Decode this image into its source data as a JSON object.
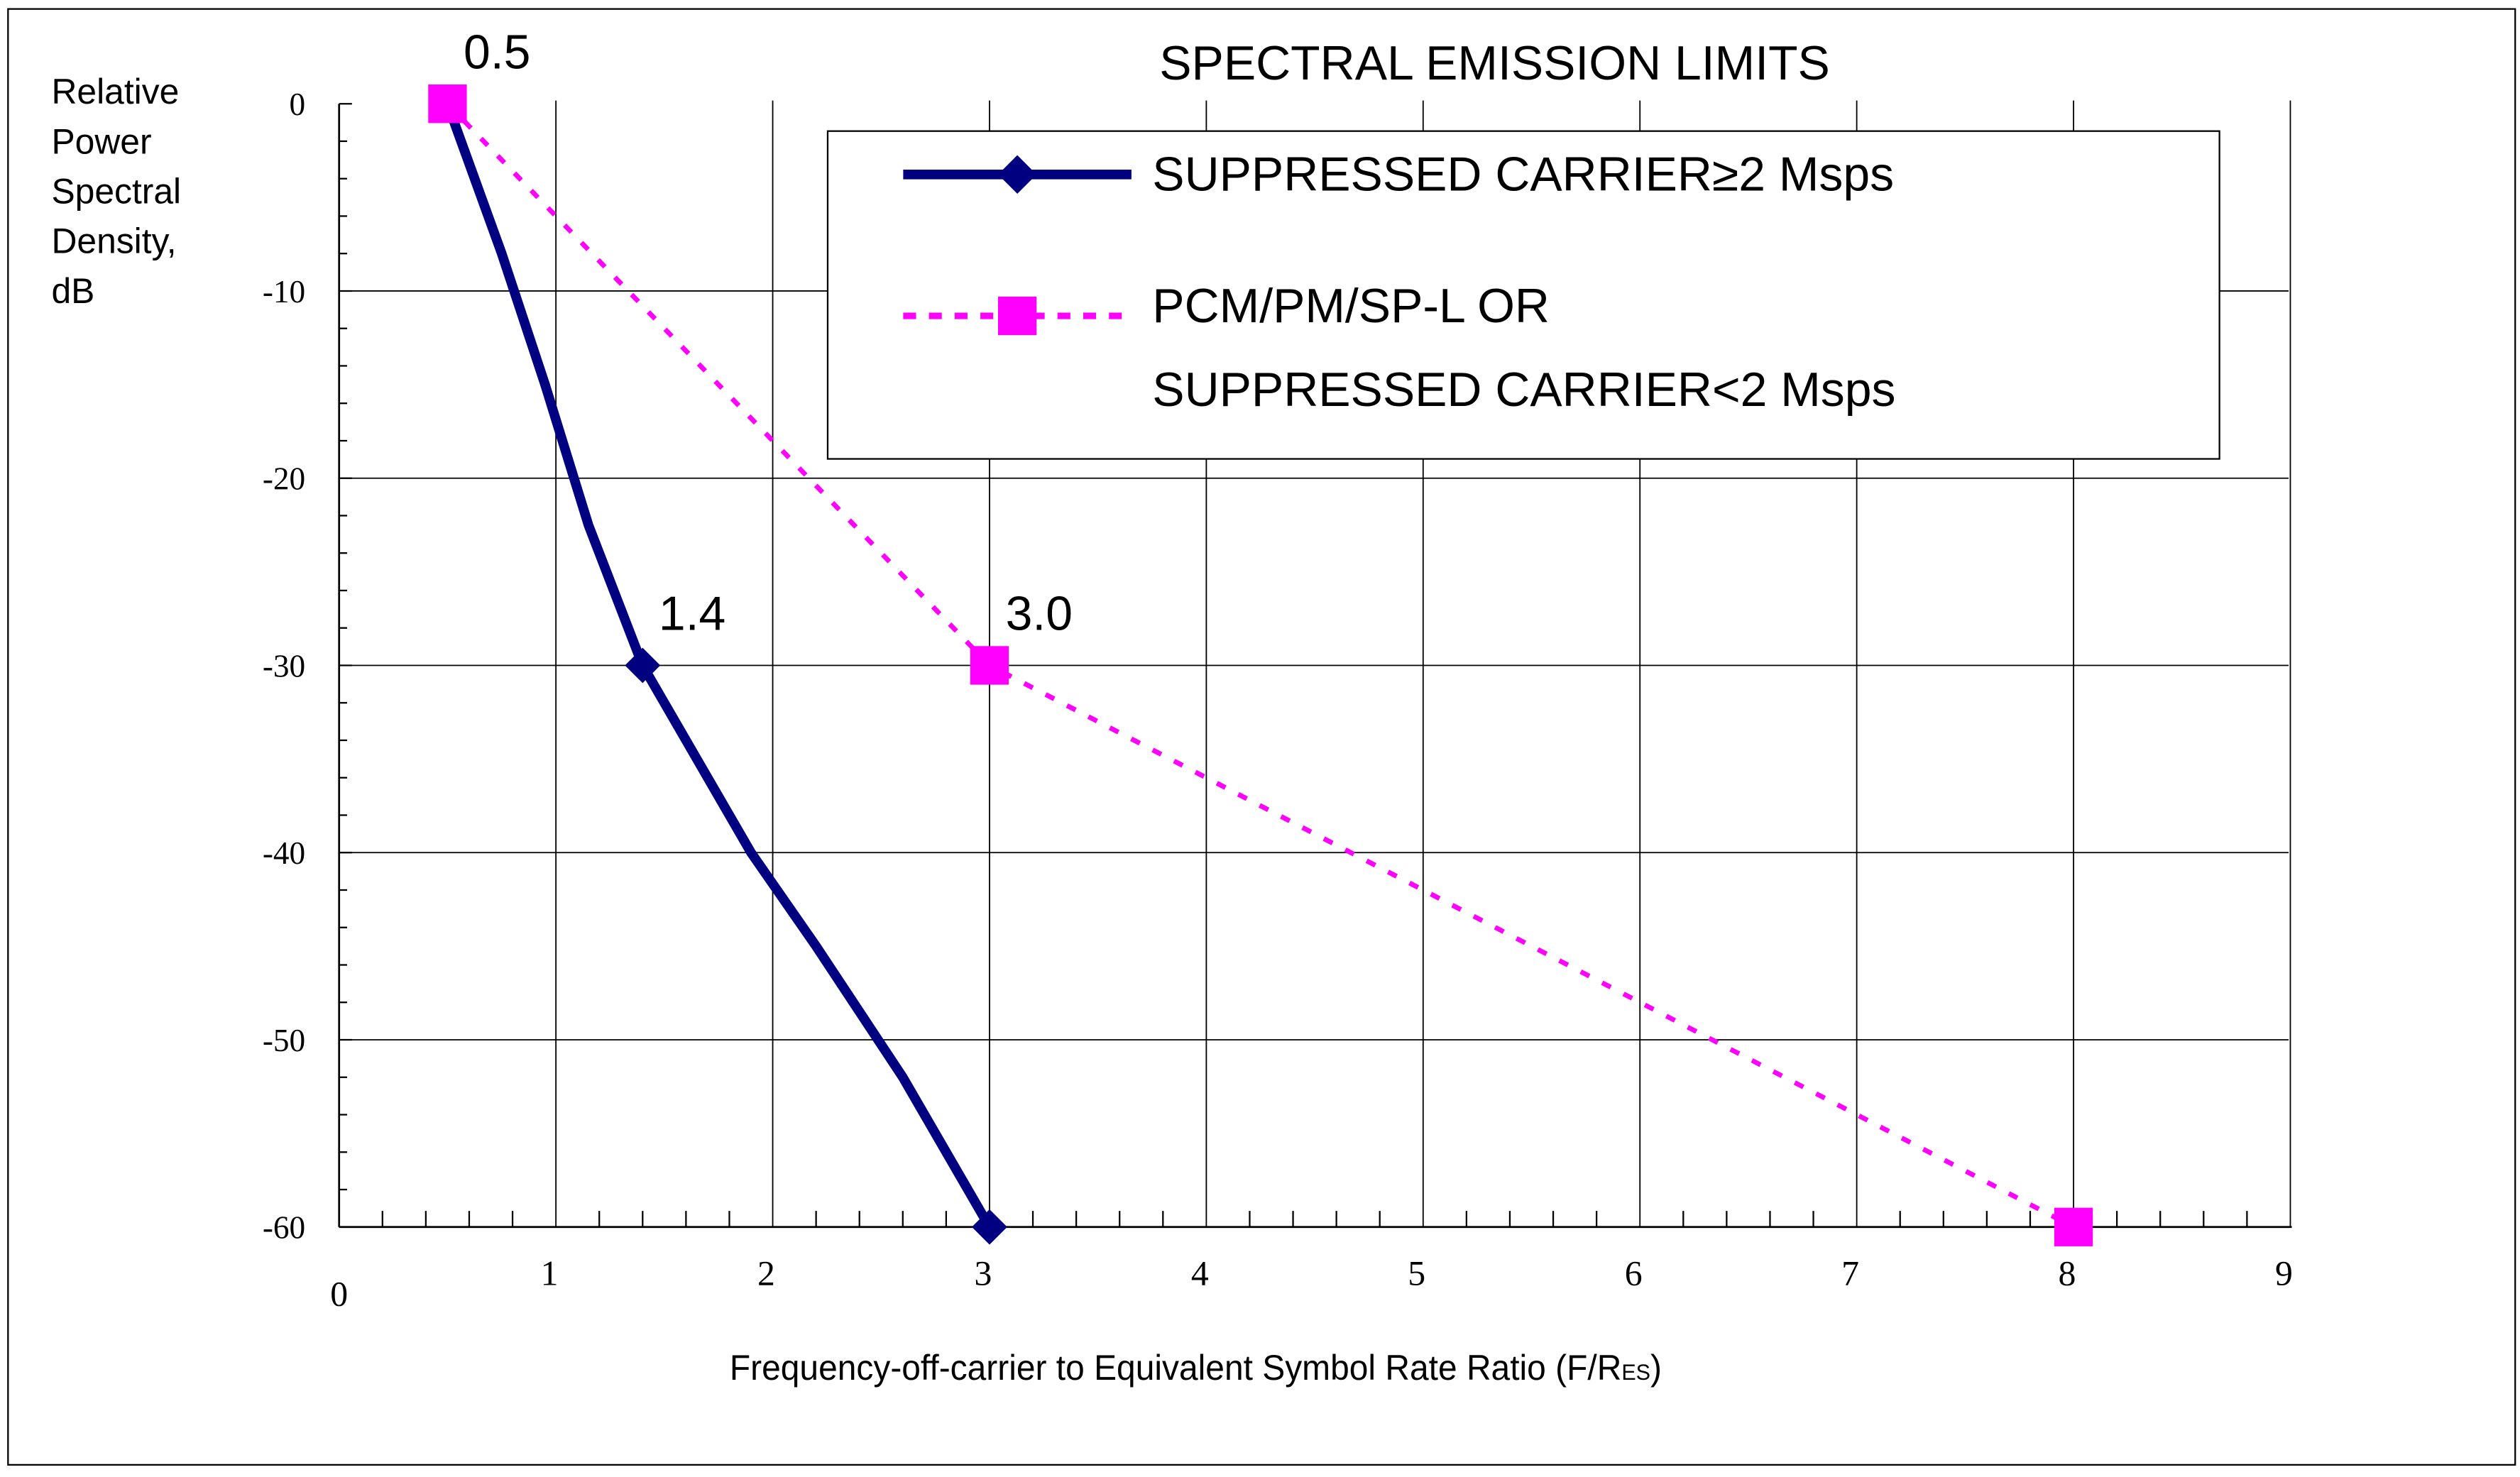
{
  "chart_data": {
    "type": "line",
    "title": "SPECTRAL EMISSION LIMITS",
    "xlabel_main": "Frequency-off-carrier to Equivalent Symbol Rate Ratio (F/R",
    "xlabel_sub": "ES",
    "xlabel_close": ")",
    "ylabel_lines": [
      "Relative",
      "Power",
      "Spectral",
      "Density,",
      "dB"
    ],
    "xlim": [
      0,
      9
    ],
    "ylim": [
      -60,
      0
    ],
    "x_ticks": [
      "0",
      "1",
      "2",
      "3",
      "4",
      "5",
      "6",
      "7",
      "8",
      "9"
    ],
    "y_ticks": [
      "0",
      "-10",
      "-20",
      "-30",
      "-40",
      "-50",
      "-60"
    ],
    "grid": true,
    "legend_position": "top-right",
    "series": [
      {
        "name": "SUPPRESSED CARRIER≥2 Msps",
        "color": "#000080",
        "style": "solid",
        "marker": "diamond",
        "x": [
          0.5,
          0.75,
          0.95,
          1.15,
          1.4,
          1.6,
          1.9,
          2.2,
          2.6,
          3.0
        ],
        "y": [
          0,
          -8,
          -15,
          -22.5,
          -30,
          -34,
          -40,
          -45,
          -52,
          -60
        ],
        "marker_x": [
          1.4,
          3.0
        ],
        "marker_y": [
          -30,
          -60
        ]
      },
      {
        "name_lines": [
          "PCM/PM/SP-L OR",
          "SUPPRESSED CARRIER<2 Msps"
        ],
        "color": "#FF00FF",
        "style": "dotted",
        "marker": "square",
        "x": [
          0.5,
          3.0,
          8.0
        ],
        "y": [
          0,
          -30,
          -60
        ],
        "marker_x": [
          0.5,
          3.0,
          8.0
        ],
        "marker_y": [
          0,
          -30,
          -60
        ]
      }
    ],
    "annotations": [
      {
        "text": "0.5",
        "x": 0.5,
        "y": 0
      },
      {
        "text": "1.4",
        "x": 1.4,
        "y": -30
      },
      {
        "text": "3.0",
        "x": 3.0,
        "y": -30
      }
    ]
  }
}
